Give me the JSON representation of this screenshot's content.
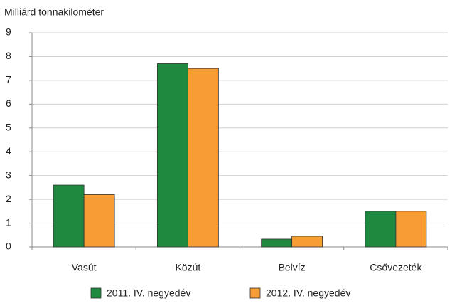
{
  "chart_data": {
    "type": "bar",
    "y_label": "Milliárd tonnakilométer",
    "categories": [
      "Vasút",
      "Közút",
      "Belvíz",
      "Csővezeték"
    ],
    "series": [
      {
        "name": "2011. IV. negyedév",
        "color": "#1f8a3f",
        "values": [
          2.6,
          7.7,
          0.33,
          1.5
        ]
      },
      {
        "name": "2012. IV. negyedév",
        "color": "#f89c34",
        "values": [
          2.2,
          7.5,
          0.45,
          1.5
        ]
      }
    ],
    "ylim": [
      0,
      9
    ],
    "yticks": [
      0,
      1,
      2,
      3,
      4,
      5,
      6,
      7,
      8,
      9
    ],
    "grid": true,
    "legend": "bottom"
  }
}
